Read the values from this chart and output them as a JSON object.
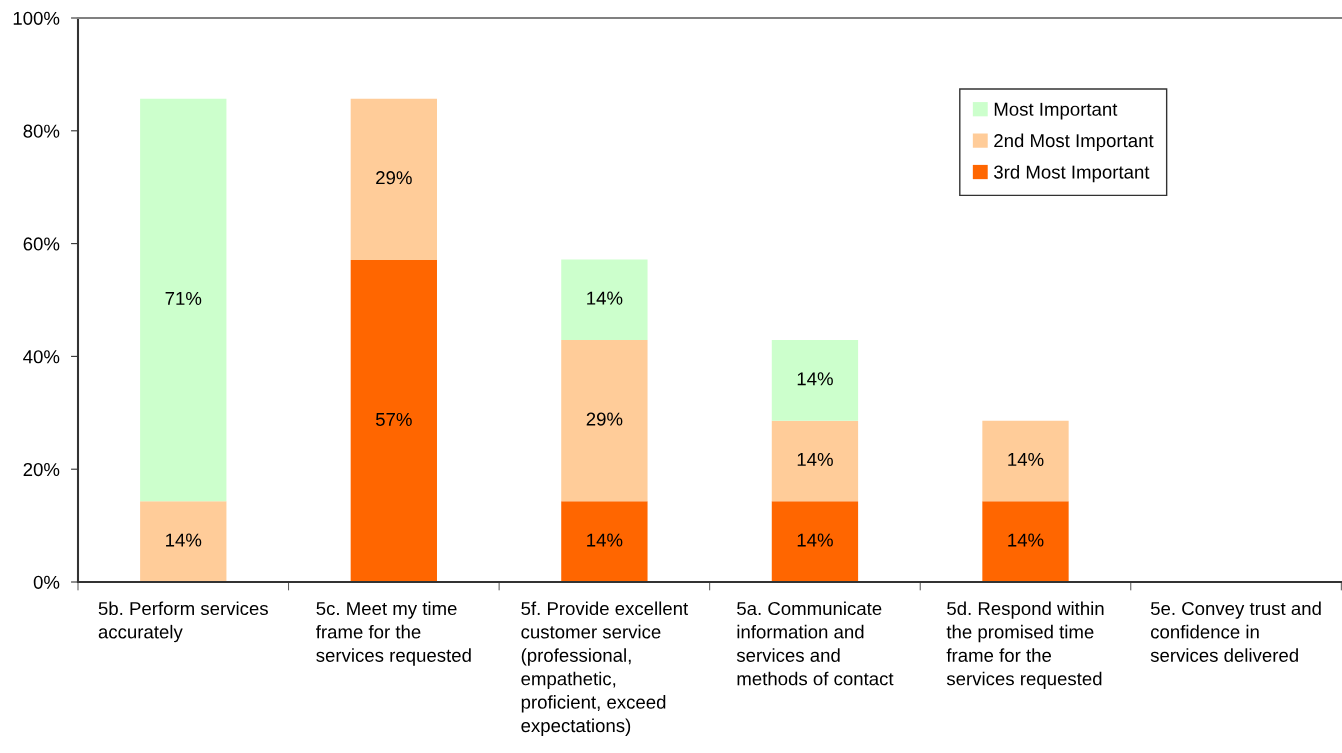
{
  "chart_data": {
    "type": "bar",
    "stacked": true,
    "categories": [
      "5b. Perform services\naccurately",
      "5c. Meet my time\nframe for the\nservices requested",
      "5f. Provide excellent\ncustomer service\n(professional,\nempathetic,\nproficient, exceed\nexpectations)",
      "5a. Communicate\ninformation and\nservices and\nmethods of contact",
      "5d. Respond within\nthe promised time\nframe for the\nservices requested",
      "5e. Convey trust and\nconfidence in\nservices delivered"
    ],
    "series": [
      {
        "name": "3rd Most Important",
        "color": "#ff6600",
        "values": [
          null,
          57.1,
          14.3,
          14.3,
          14.3,
          null
        ],
        "value_labels": [
          null,
          "57%",
          "14%",
          "14%",
          "14%",
          null
        ]
      },
      {
        "name": "2nd Most Important",
        "color": "#ffcc99",
        "values": [
          14.3,
          28.6,
          28.6,
          14.3,
          14.3,
          null
        ],
        "value_labels": [
          "14%",
          "29%",
          "29%",
          "14%",
          "14%",
          null
        ]
      },
      {
        "name": "Most Important",
        "color": "#ccffcc",
        "values": [
          71.4,
          null,
          14.3,
          14.3,
          null,
          null
        ],
        "value_labels": [
          "71%",
          null,
          "14%",
          "14%",
          null,
          null
        ]
      }
    ],
    "ylim": [
      0,
      100
    ],
    "yticks": [
      {
        "value": 0,
        "label": "0%"
      },
      {
        "value": 20,
        "label": "20%"
      },
      {
        "value": 40,
        "label": "40%"
      },
      {
        "value": 60,
        "label": "60%"
      },
      {
        "value": 80,
        "label": "80%"
      },
      {
        "value": 100,
        "label": "100%"
      }
    ],
    "grid": false,
    "legend": "top right"
  }
}
